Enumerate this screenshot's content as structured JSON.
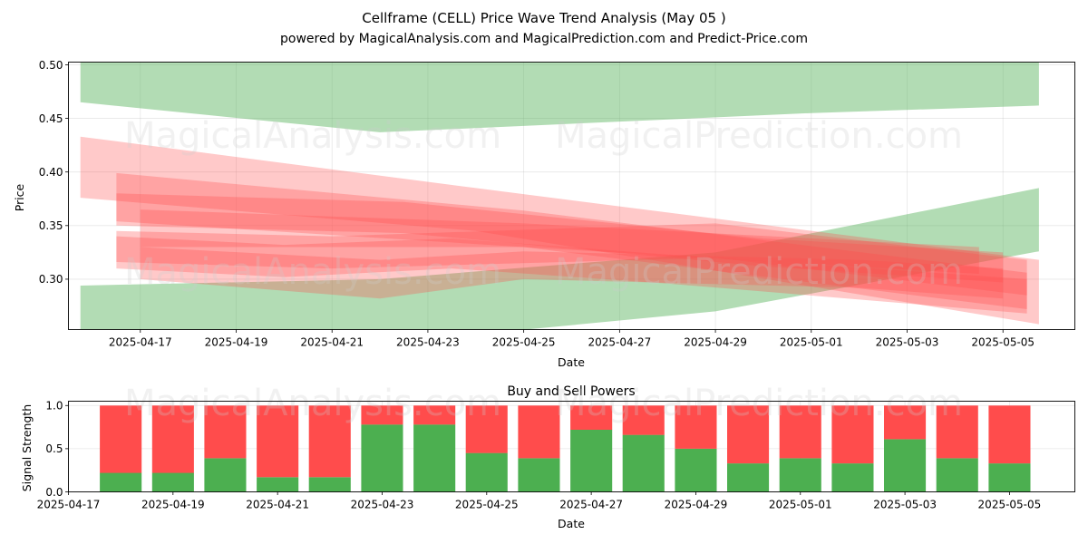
{
  "header": {
    "title": "Cellframe (CELL) Price Wave Trend Analysis (May 05 )",
    "subtitle": "powered by MagicalAnalysis.com and MagicalPrediction.com and Predict-Price.com"
  },
  "watermarks": {
    "left": "MagicalAnalysis.com",
    "right": "MagicalPrediction.com"
  },
  "colors": {
    "green": "#4caf50",
    "red": "#ff4c4c",
    "green_band": "#4caf50",
    "red_band": "#ff4c4c"
  },
  "chart_data": [
    {
      "type": "area",
      "title": "",
      "xlabel": "Date",
      "ylabel": "Price",
      "ylim": [
        0.253,
        0.5025
      ],
      "xlim": [
        "2025-04-15T12:00",
        "2025-05-06T12:00"
      ],
      "grid": true,
      "yticks": [
        0.25,
        0.3,
        0.35,
        0.4,
        0.45,
        0.5
      ],
      "ytick_labels": [
        "0.25",
        "0.30",
        "0.35",
        "0.40",
        "0.45",
        "0.50"
      ],
      "xticks": [
        "2025-04-17",
        "2025-04-19",
        "2025-04-21",
        "2025-04-23",
        "2025-04-25",
        "2025-04-27",
        "2025-04-29",
        "2025-05-01",
        "2025-05-03",
        "2025-05-05"
      ],
      "series": [
        {
          "band": "green",
          "x": [
            "2025-04-15T18:00",
            "2025-04-22T00:00",
            "2025-05-01T00:00",
            "2025-05-05T18:00"
          ],
          "upper": [
            0.525,
            0.51,
            0.52,
            0.51
          ],
          "lower": [
            0.465,
            0.437,
            0.455,
            0.462
          ]
        },
        {
          "band": "green",
          "x": [
            "2025-04-15T18:00",
            "2025-04-22T00:00",
            "2025-04-29T00:00",
            "2025-05-05T18:00"
          ],
          "upper": [
            0.294,
            0.3,
            0.325,
            0.385
          ],
          "lower": [
            0.24,
            0.24,
            0.27,
            0.326
          ]
        },
        {
          "band": "red",
          "x": [
            "2025-04-15T18:00",
            "2025-04-24T00:00",
            "2025-05-05T18:00"
          ],
          "upper": [
            0.433,
            0.385,
            0.318
          ],
          "lower": [
            0.376,
            0.345,
            0.258
          ]
        },
        {
          "band": "red",
          "x": [
            "2025-04-16T12:00",
            "2025-04-25T00:00",
            "2025-05-05T12:00"
          ],
          "upper": [
            0.399,
            0.364,
            0.306
          ],
          "lower": [
            0.354,
            0.33,
            0.272
          ]
        },
        {
          "band": "red",
          "x": [
            "2025-04-16T12:00",
            "2025-04-22T12:00",
            "2025-04-30T00:00",
            "2025-05-05T00:00"
          ],
          "upper": [
            0.38,
            0.372,
            0.338,
            0.325
          ],
          "lower": [
            0.35,
            0.343,
            0.312,
            0.297
          ]
        },
        {
          "band": "red",
          "x": [
            "2025-04-16T12:00",
            "2025-04-21T00:00",
            "2025-04-29T00:00",
            "2025-05-05T12:00"
          ],
          "upper": [
            0.345,
            0.34,
            0.352,
            0.318
          ],
          "lower": [
            0.316,
            0.31,
            0.32,
            0.285
          ]
        },
        {
          "band": "red",
          "x": [
            "2025-04-16T12:00",
            "2025-04-20T00:00",
            "2025-04-23T12:00",
            "2025-04-28T00:00",
            "2025-05-05T12:00"
          ],
          "upper": [
            0.34,
            0.332,
            0.338,
            0.323,
            0.3
          ],
          "lower": [
            0.31,
            0.302,
            0.31,
            0.296,
            0.268
          ]
        },
        {
          "band": "red",
          "x": [
            "2025-04-17T00:00",
            "2025-04-22T00:00",
            "2025-04-25T00:00",
            "2025-05-02T00:00",
            "2025-05-05T00:00"
          ],
          "upper": [
            0.33,
            0.318,
            0.326,
            0.318,
            0.31
          ],
          "lower": [
            0.3,
            0.282,
            0.3,
            0.292,
            0.282
          ]
        },
        {
          "band": "red",
          "x": [
            "2025-04-17T00:00",
            "2025-04-25T00:00",
            "2025-05-04T12:00"
          ],
          "upper": [
            0.365,
            0.352,
            0.33
          ],
          "lower": [
            0.33,
            0.33,
            0.305
          ]
        }
      ]
    },
    {
      "type": "bar",
      "title": "Buy and Sell Powers",
      "xlabel": "Date",
      "ylabel": "Signal Strength",
      "ylim": [
        0,
        1.05
      ],
      "xlim": [
        "2025-04-17T00:00",
        "2025-05-06T06:00"
      ],
      "grid": true,
      "yticks": [
        0.0,
        0.5,
        1.0
      ],
      "ytick_labels": [
        "0.0",
        "0.5",
        "1.0"
      ],
      "xticks": [
        "2025-04-17",
        "2025-04-19",
        "2025-04-21",
        "2025-04-23",
        "2025-04-25",
        "2025-04-27",
        "2025-04-29",
        "2025-05-01",
        "2025-05-03",
        "2025-05-05"
      ],
      "categories": [
        "2025-04-18",
        "2025-04-19",
        "2025-04-20",
        "2025-04-21",
        "2025-04-22",
        "2025-04-23",
        "2025-04-24",
        "2025-04-25",
        "2025-04-26",
        "2025-04-27",
        "2025-04-28",
        "2025-04-29",
        "2025-04-30",
        "2025-05-01",
        "2025-05-02",
        "2025-05-03",
        "2025-05-04",
        "2025-05-05"
      ],
      "series": [
        {
          "name": "",
          "color": "#4caf50",
          "values": [
            0.22,
            0.22,
            0.39,
            0.17,
            0.17,
            0.78,
            0.78,
            0.45,
            0.39,
            0.72,
            0.66,
            0.5,
            0.33,
            0.39,
            0.33,
            0.61,
            0.39,
            0.33
          ]
        },
        {
          "name": "",
          "color": "#ff4c4c",
          "values": [
            0.78,
            0.78,
            0.61,
            0.83,
            0.83,
            0.22,
            0.22,
            0.55,
            0.61,
            0.28,
            0.34,
            0.5,
            0.67,
            0.61,
            0.67,
            0.39,
            0.61,
            0.67
          ]
        }
      ]
    }
  ]
}
